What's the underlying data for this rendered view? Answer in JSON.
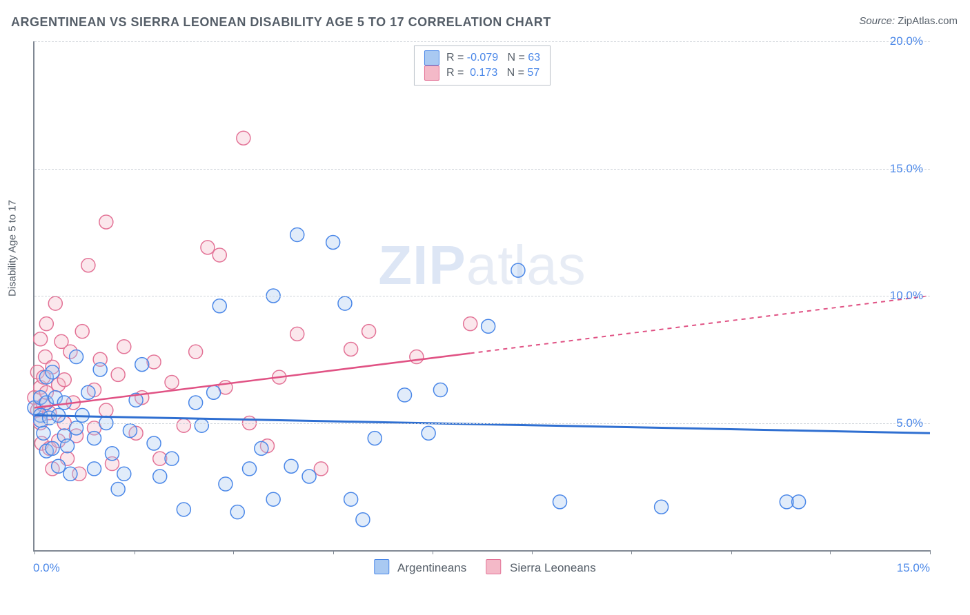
{
  "title": "ARGENTINEAN VS SIERRA LEONEAN DISABILITY AGE 5 TO 17 CORRELATION CHART",
  "source_label": "Source:",
  "source_name": "ZipAtlas.com",
  "y_axis_label": "Disability Age 5 to 17",
  "watermark": {
    "part1": "ZIP",
    "part2": "atlas"
  },
  "chart": {
    "type": "scatter",
    "background_color": "#ffffff",
    "grid_color": "#cfd4da",
    "axis_color": "#808893",
    "xlim": [
      0,
      15
    ],
    "ylim": [
      0,
      20
    ],
    "x_tick_positions": [
      0,
      1.67,
      3.33,
      5.0,
      6.67,
      8.33,
      10.0,
      11.67,
      13.33,
      15.0
    ],
    "x_tick_labels": {
      "first": "0.0%",
      "last": "15.0%"
    },
    "y_grid": [
      {
        "value": 5,
        "label": "5.0%"
      },
      {
        "value": 10,
        "label": "10.0%"
      },
      {
        "value": 15,
        "label": "15.0%"
      },
      {
        "value": 20,
        "label": "20.0%"
      }
    ],
    "marker_radius": 10,
    "marker_stroke_width": 1.5,
    "marker_fill_opacity": 0.35,
    "series": [
      {
        "id": "argentineans",
        "label": "Argentineans",
        "fill": "#a9c9f2",
        "stroke": "#4a87e8",
        "r_value": "-0.079",
        "n_value": "63",
        "regression": {
          "x1": 0,
          "y1": 5.3,
          "x2": 15,
          "y2": 4.6,
          "solid_to_x": 15,
          "color": "#2f6fd1",
          "width": 3
        },
        "points": [
          [
            0.0,
            5.6
          ],
          [
            0.1,
            5.3
          ],
          [
            0.1,
            6.0
          ],
          [
            0.1,
            5.1
          ],
          [
            0.15,
            4.6
          ],
          [
            0.2,
            6.8
          ],
          [
            0.2,
            5.8
          ],
          [
            0.2,
            3.9
          ],
          [
            0.25,
            5.2
          ],
          [
            0.3,
            4.0
          ],
          [
            0.3,
            7.0
          ],
          [
            0.35,
            6.0
          ],
          [
            0.4,
            5.3
          ],
          [
            0.4,
            3.3
          ],
          [
            0.5,
            4.5
          ],
          [
            0.5,
            5.8
          ],
          [
            0.55,
            4.1
          ],
          [
            0.6,
            3.0
          ],
          [
            0.7,
            7.6
          ],
          [
            0.7,
            4.8
          ],
          [
            0.8,
            5.3
          ],
          [
            0.9,
            6.2
          ],
          [
            1.0,
            4.4
          ],
          [
            1.0,
            3.2
          ],
          [
            1.1,
            7.1
          ],
          [
            1.2,
            5.0
          ],
          [
            1.3,
            3.8
          ],
          [
            1.4,
            2.4
          ],
          [
            1.5,
            3.0
          ],
          [
            1.6,
            4.7
          ],
          [
            1.7,
            5.9
          ],
          [
            1.8,
            7.3
          ],
          [
            2.0,
            4.2
          ],
          [
            2.1,
            2.9
          ],
          [
            2.3,
            3.6
          ],
          [
            2.5,
            1.6
          ],
          [
            2.7,
            5.8
          ],
          [
            2.8,
            4.9
          ],
          [
            3.0,
            6.2
          ],
          [
            3.1,
            9.6
          ],
          [
            3.2,
            2.6
          ],
          [
            3.4,
            1.5
          ],
          [
            3.6,
            3.2
          ],
          [
            3.8,
            4.0
          ],
          [
            4.0,
            10.0
          ],
          [
            4.0,
            2.0
          ],
          [
            4.3,
            3.3
          ],
          [
            4.4,
            12.4
          ],
          [
            4.6,
            2.9
          ],
          [
            5.0,
            12.1
          ],
          [
            5.2,
            9.7
          ],
          [
            5.3,
            2.0
          ],
          [
            5.5,
            1.2
          ],
          [
            5.7,
            4.4
          ],
          [
            6.2,
            6.1
          ],
          [
            6.6,
            4.6
          ],
          [
            6.8,
            6.3
          ],
          [
            7.6,
            8.8
          ],
          [
            8.1,
            11.0
          ],
          [
            8.8,
            1.9
          ],
          [
            10.5,
            1.7
          ],
          [
            12.6,
            1.9
          ],
          [
            12.8,
            1.9
          ]
        ]
      },
      {
        "id": "sierra-leoneans",
        "label": "Sierra Leoneans",
        "fill": "#f4b9c8",
        "stroke": "#e37296",
        "r_value": "0.173",
        "n_value": "57",
        "regression": {
          "x1": 0,
          "y1": 5.6,
          "x2": 15,
          "y2": 10.0,
          "solid_to_x": 7.3,
          "color": "#e05284",
          "width": 2.5
        },
        "points": [
          [
            0.0,
            6.0
          ],
          [
            0.05,
            5.5
          ],
          [
            0.05,
            7.0
          ],
          [
            0.1,
            8.3
          ],
          [
            0.1,
            6.4
          ],
          [
            0.1,
            5.0
          ],
          [
            0.12,
            4.2
          ],
          [
            0.15,
            6.8
          ],
          [
            0.15,
            5.7
          ],
          [
            0.18,
            7.6
          ],
          [
            0.2,
            8.9
          ],
          [
            0.2,
            6.2
          ],
          [
            0.25,
            4.0
          ],
          [
            0.25,
            5.4
          ],
          [
            0.3,
            3.2
          ],
          [
            0.3,
            7.2
          ],
          [
            0.35,
            9.7
          ],
          [
            0.4,
            6.5
          ],
          [
            0.4,
            4.3
          ],
          [
            0.45,
            8.2
          ],
          [
            0.5,
            5.0
          ],
          [
            0.5,
            6.7
          ],
          [
            0.55,
            3.6
          ],
          [
            0.6,
            7.8
          ],
          [
            0.65,
            5.8
          ],
          [
            0.7,
            4.5
          ],
          [
            0.75,
            3.0
          ],
          [
            0.8,
            8.6
          ],
          [
            0.9,
            11.2
          ],
          [
            1.0,
            6.3
          ],
          [
            1.0,
            4.8
          ],
          [
            1.1,
            7.5
          ],
          [
            1.2,
            5.5
          ],
          [
            1.2,
            12.9
          ],
          [
            1.3,
            3.4
          ],
          [
            1.4,
            6.9
          ],
          [
            1.5,
            8.0
          ],
          [
            1.7,
            4.6
          ],
          [
            1.8,
            6.0
          ],
          [
            2.0,
            7.4
          ],
          [
            2.1,
            3.6
          ],
          [
            2.3,
            6.6
          ],
          [
            2.5,
            4.9
          ],
          [
            2.7,
            7.8
          ],
          [
            2.9,
            11.9
          ],
          [
            3.1,
            11.6
          ],
          [
            3.2,
            6.4
          ],
          [
            3.5,
            16.2
          ],
          [
            3.6,
            5.0
          ],
          [
            3.9,
            4.1
          ],
          [
            4.1,
            6.8
          ],
          [
            4.4,
            8.5
          ],
          [
            4.8,
            3.2
          ],
          [
            5.3,
            7.9
          ],
          [
            5.6,
            8.6
          ],
          [
            6.4,
            7.6
          ],
          [
            7.3,
            8.9
          ]
        ]
      }
    ],
    "legend_top": {
      "r_label": "R =",
      "n_label": "N ="
    }
  }
}
